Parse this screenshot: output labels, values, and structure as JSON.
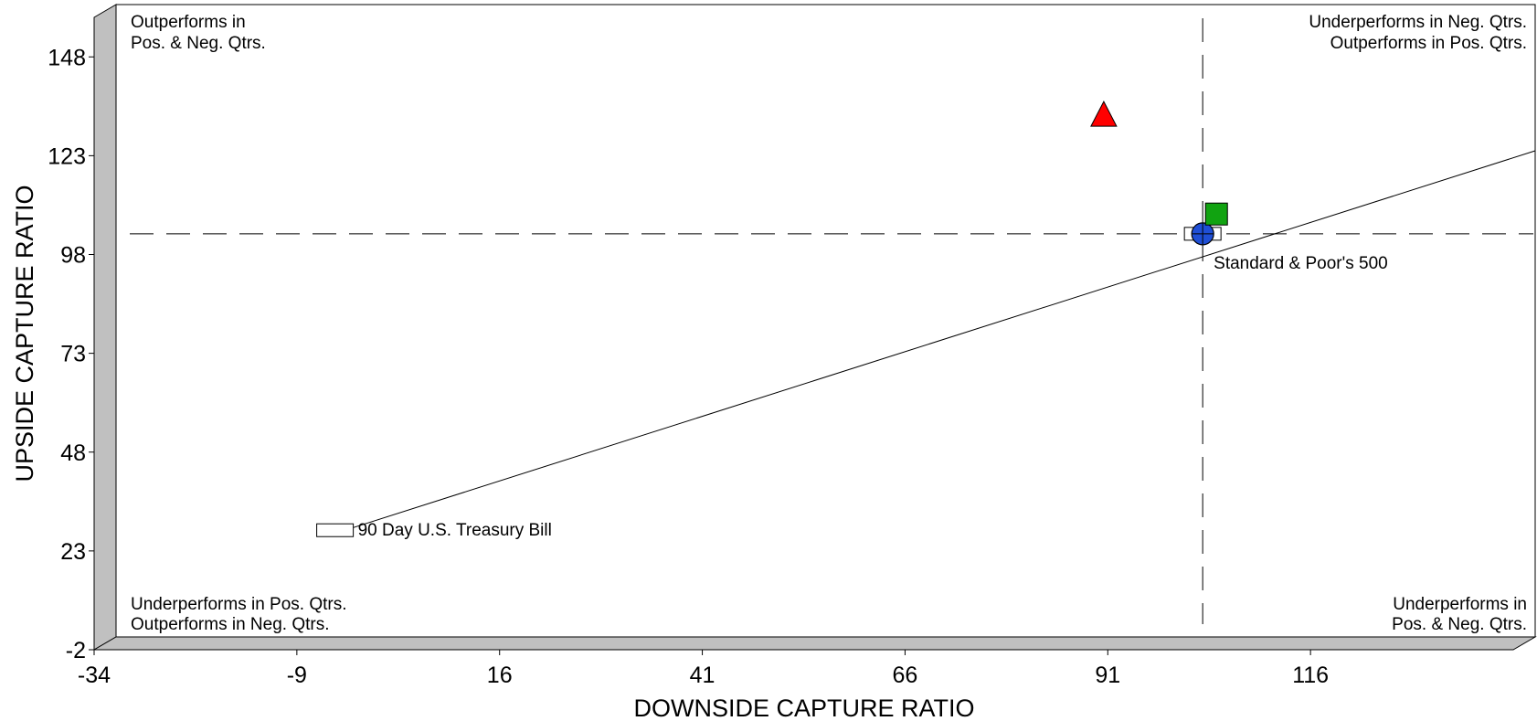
{
  "chart_data": {
    "type": "scatter",
    "xlabel": "DOWNSIDE CAPTURE RATIO",
    "ylabel": "UPSIDE CAPTURE RATIO",
    "xlim": [
      -34,
      141
    ],
    "ylim": [
      -2,
      158
    ],
    "xticks": [
      -34,
      -9,
      16,
      41,
      66,
      91,
      116
    ],
    "yticks": [
      -2,
      23,
      48,
      73,
      98,
      123,
      148
    ],
    "reference_lines": {
      "x": 100,
      "y": 100,
      "style": "dashed"
    },
    "regression_line": {
      "from": [
        -5,
        25.5
      ],
      "to": [
        141,
        121
      ]
    },
    "quadrant_labels": {
      "top_left": [
        "Outperforms in",
        "Pos. & Neg. Qtrs."
      ],
      "top_right": [
        "Underperforms in Neg. Qtrs.",
        "Outperforms in Pos. Qtrs."
      ],
      "bottom_left": [
        "Underperforms in Pos. Qtrs.",
        "Outperforms in Neg. Qtrs."
      ],
      "bottom_right": [
        "Underperforms in",
        "Pos. & Neg. Qtrs."
      ]
    },
    "points": [
      {
        "name": "90 Day U.S. Treasury Bill",
        "x": -7,
        "y": 25,
        "shape": "rect",
        "color": "#ffffff",
        "label": "90 Day U.S. Treasury Bill"
      },
      {
        "name": "Standard & Poor's 500",
        "x": 100,
        "y": 100,
        "shape": "rect",
        "color": "#ffffff",
        "label": "Standard & Poor's 500"
      },
      {
        "name": "circle-point",
        "x": 100,
        "y": 100,
        "shape": "circle",
        "color": "#1f4fd6",
        "label": ""
      },
      {
        "name": "square-point",
        "x": 101.7,
        "y": 105,
        "shape": "square",
        "color": "#11a311",
        "label": ""
      },
      {
        "name": "triangle-point",
        "x": 87.8,
        "y": 130,
        "shape": "triangle",
        "color": "#ff0000",
        "label": ""
      }
    ]
  }
}
